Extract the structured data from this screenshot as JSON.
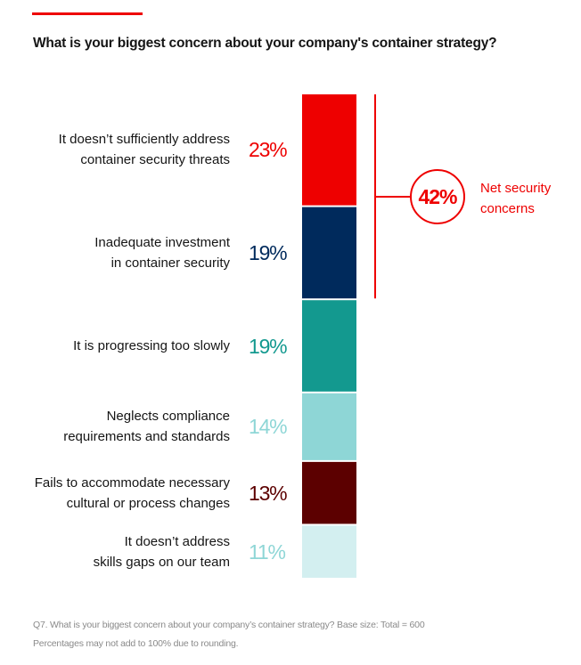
{
  "title": "What is your biggest concern about your company's container strategy?",
  "colors": {
    "accent": "#ee0000"
  },
  "chart_data": {
    "type": "bar",
    "orientation": "stacked-vertical",
    "title": "What is your biggest concern about your company's container strategy?",
    "categories": [
      [
        "It doesn’t sufficiently address",
        "container security threats"
      ],
      [
        "Inadequate investment",
        "in container security"
      ],
      [
        "It is progressing too slowly"
      ],
      [
        "Neglects compliance",
        "requirements and standards"
      ],
      [
        "Fails to accommodate necessary",
        "cultural or process changes"
      ],
      [
        "It doesn’t address",
        "skills gaps on our team"
      ]
    ],
    "values": [
      23,
      19,
      19,
      14,
      13,
      11
    ],
    "value_labels": [
      "23%",
      "19%",
      "19%",
      "14%",
      "13%",
      "11%"
    ],
    "bar_colors": [
      "#ee0000",
      "#002a5c",
      "#13998f",
      "#8ed6d6",
      "#5c0000",
      "#d3eff0"
    ],
    "label_colors": [
      "#ee0000",
      "#002a5c",
      "#13998f",
      "#8ed6d6",
      "#5c0000",
      "#8ed6d6"
    ],
    "annotation": {
      "value": "42%",
      "label": "Net security concerns",
      "spans_categories": [
        0,
        1
      ]
    }
  },
  "footnotes": [
    "Q7. What is your biggest concern about your company’s container strategy? Base size: Total = 600",
    "Percentages may not add to 100% due to rounding."
  ]
}
